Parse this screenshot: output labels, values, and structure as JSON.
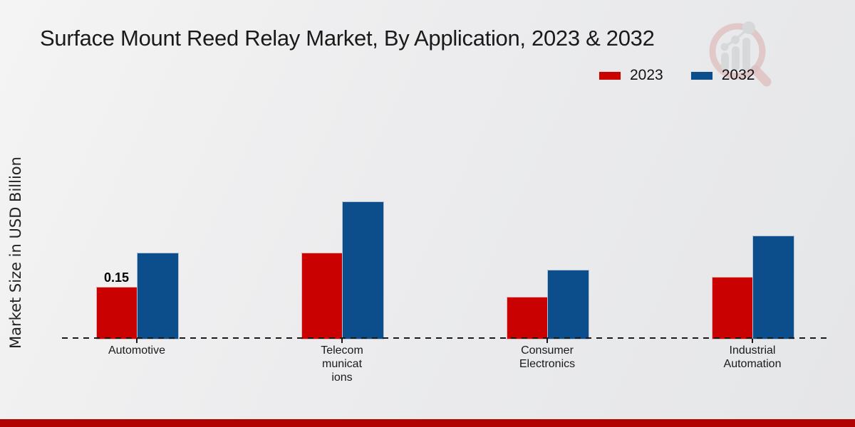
{
  "title": "Surface Mount Reed Relay Market, By Application, 2023 & 2032",
  "y_axis_label": "Market Size in USD Billion",
  "legend": [
    {
      "label": "2023",
      "color": "#C90100"
    },
    {
      "label": "2032",
      "color": "#0C4D8B"
    }
  ],
  "colors": {
    "series_2023": "#C90100",
    "series_2032": "#0C4D8B",
    "footer_bar": "#B20303",
    "text": "#1A1A1A"
  },
  "chart_data": {
    "type": "bar",
    "title": "Surface Mount Reed Relay Market, By Application, 2023 & 2032",
    "xlabel": "",
    "ylabel": "Market Size in USD Billion",
    "ylim": [
      0,
      0.45
    ],
    "grid": false,
    "legend_position": "top-right",
    "categories": [
      "Automotive",
      "Telecommunications",
      "Consumer Electronics",
      "Industrial Automation"
    ],
    "category_display": [
      "Automotive",
      "Telecom\nmunicat\nions",
      "Consumer\nElectronics",
      "Industrial\nAutomation"
    ],
    "series": [
      {
        "name": "2023",
        "color": "#C90100",
        "values": [
          0.15,
          0.25,
          0.12,
          0.18
        ]
      },
      {
        "name": "2032",
        "color": "#0C4D8B",
        "values": [
          0.25,
          0.4,
          0.2,
          0.3
        ]
      }
    ],
    "data_labels": [
      {
        "category": "Automotive",
        "series": "2023",
        "text": "0.15"
      }
    ]
  }
}
